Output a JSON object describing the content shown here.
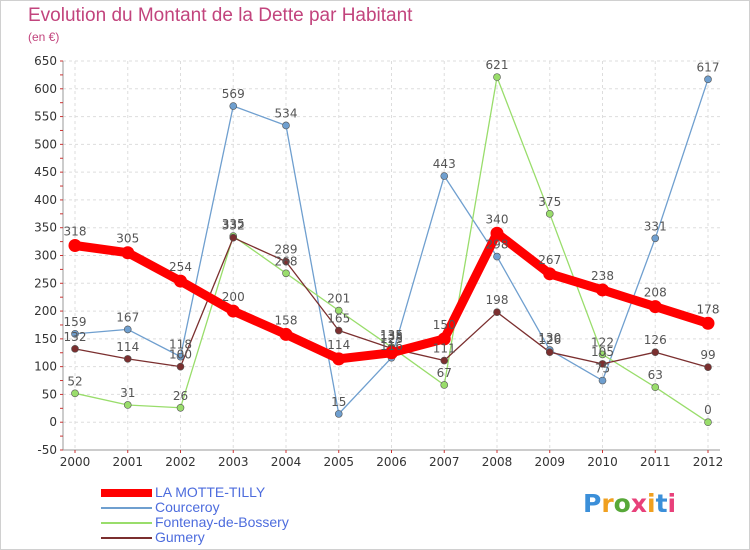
{
  "header": {
    "title": "Evolution du Montant de la Dette par Habitant",
    "subtitle": "(en €)"
  },
  "logo": {
    "text": "Proxiti",
    "colors": [
      "#3b8fd9",
      "#f0a020",
      "#57a839",
      "#e8407a",
      "#f0a020",
      "#3b8fd9",
      "#e8407a"
    ]
  },
  "chart_data": {
    "type": "line",
    "title": "Evolution du Montant de la Dette par Habitant",
    "subtitle": "(en €)",
    "x": [
      "2000",
      "2001",
      "2002",
      "2003",
      "2004",
      "2005",
      "2006",
      "2007",
      "2008",
      "2009",
      "2010",
      "2011",
      "2012"
    ],
    "ylim": [
      -50,
      650
    ],
    "yticks": [
      -50,
      0,
      50,
      100,
      150,
      200,
      250,
      300,
      350,
      400,
      450,
      500,
      550,
      600,
      650
    ],
    "grid": true,
    "legend_position": "bottom-left",
    "series": [
      {
        "name": "LA MOTTE-TILLY",
        "color": "#ff0000",
        "values": [
          318,
          305,
          254,
          200,
          158,
          114,
          125,
          150,
          340,
          267,
          238,
          208,
          178
        ]
      },
      {
        "name": "Courceroy",
        "color": "#6f9fcf",
        "values": [
          159,
          167,
          118,
          569,
          534,
          15,
          116,
          443,
          298,
          130,
          75,
          331,
          617
        ]
      },
      {
        "name": "Fontenay-de-Bossery",
        "color": "#99dd6b",
        "values": [
          52,
          31,
          26,
          335,
          268,
          201,
          135,
          67,
          621,
          375,
          122,
          63,
          0
        ]
      },
      {
        "name": "Gumery",
        "color": "#7b2f2f",
        "values": [
          132,
          114,
          100,
          332,
          289,
          165,
          133,
          111,
          198,
          126,
          105,
          126,
          99
        ]
      }
    ]
  }
}
